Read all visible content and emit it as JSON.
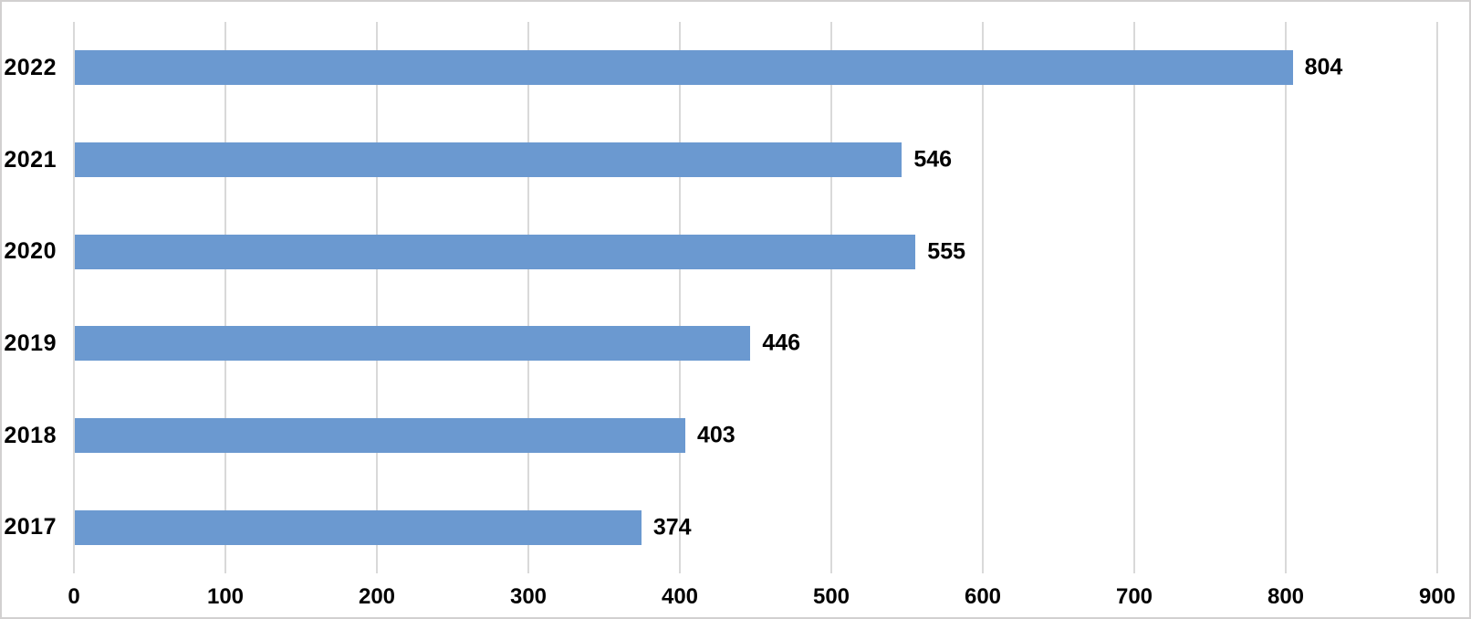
{
  "chart_data": {
    "type": "bar",
    "orientation": "horizontal",
    "title": "",
    "xlabel": "",
    "ylabel": "",
    "categories": [
      "2022",
      "2021",
      "2020",
      "2019",
      "2018",
      "2017"
    ],
    "values": [
      804,
      546,
      555,
      446,
      403,
      374
    ],
    "data_labels": [
      "804",
      "546",
      "555",
      "446",
      "403",
      "374"
    ],
    "x_ticks": [
      "0",
      "100",
      "200",
      "300",
      "400",
      "500",
      "600",
      "700",
      "800",
      "900"
    ],
    "xlim": [
      0,
      900
    ],
    "grid": true,
    "legend": false,
    "colors": {
      "bar": "#6B99D0",
      "gridline": "#d9d9d9",
      "text": "#000000",
      "frame_border": "#d2d0d0",
      "background": "#ffffff"
    }
  },
  "layout_labels": {
    "chart_description": "Horizontal bar chart of yearly values, 2017-2022"
  }
}
